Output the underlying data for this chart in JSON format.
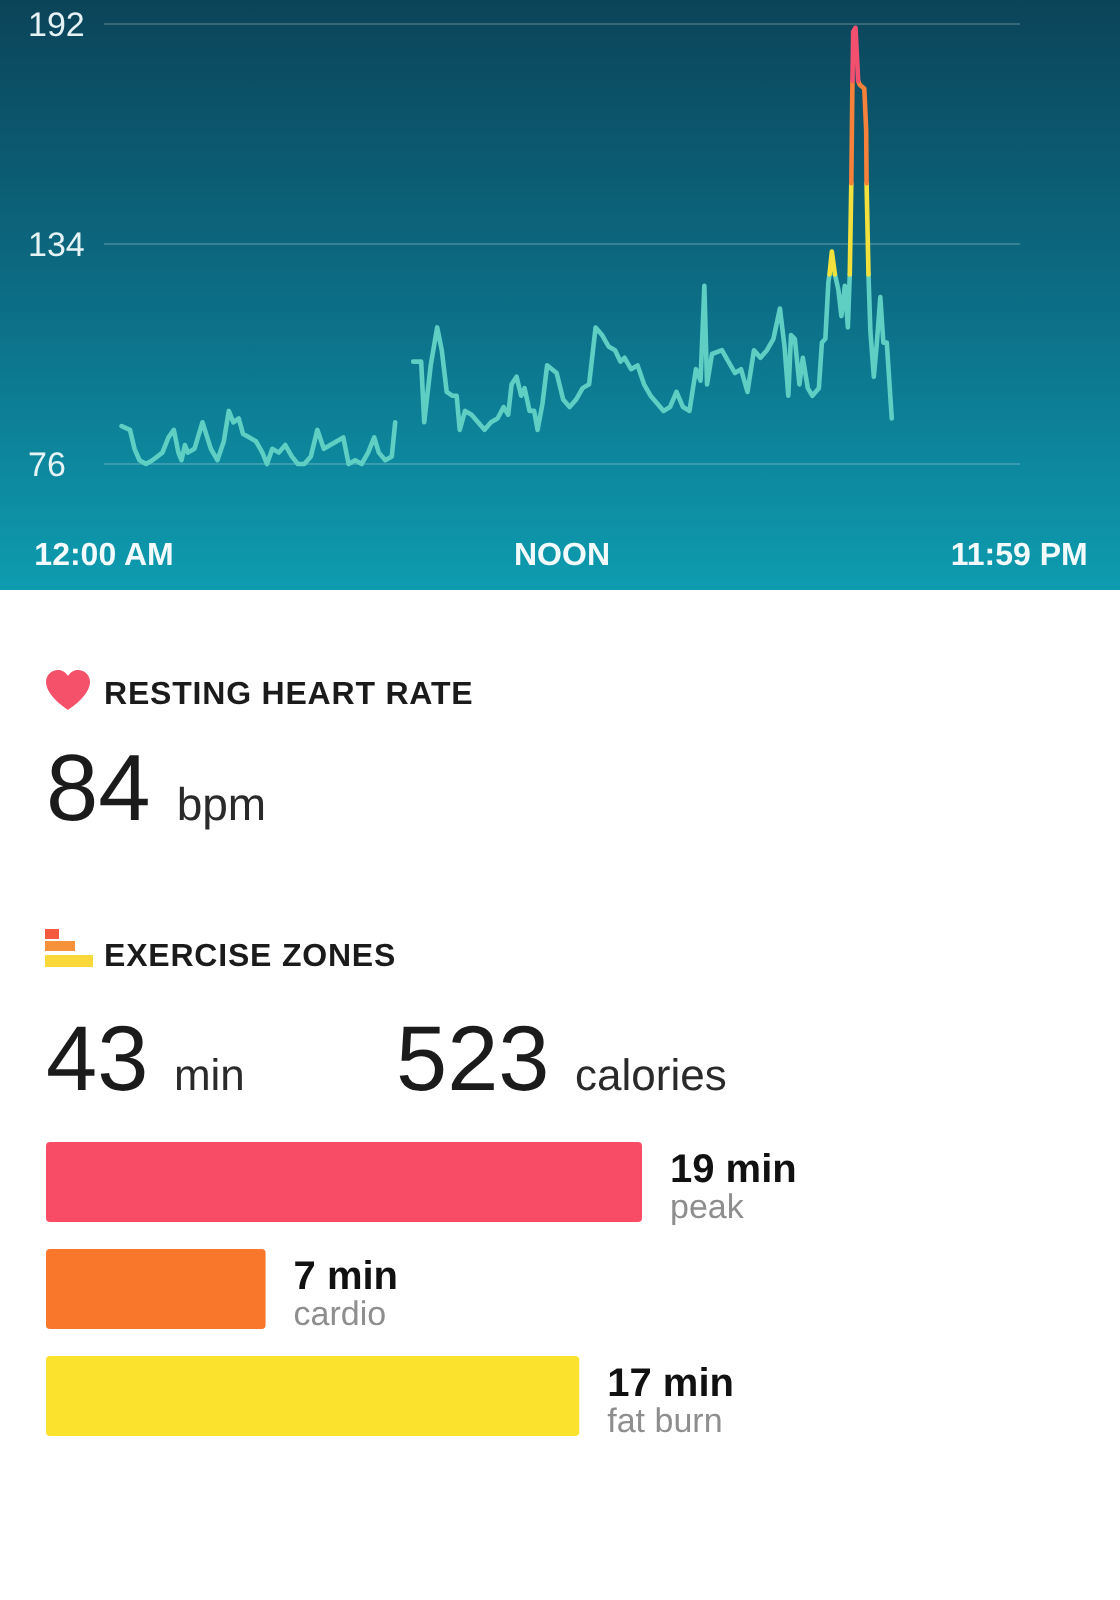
{
  "chart_data": [
    {
      "type": "line",
      "xlim": [
        0,
        24
      ],
      "ylim": [
        76,
        192
      ],
      "xticks": [
        {
          "value": 0,
          "label": "12:00 AM"
        },
        {
          "value": 12,
          "label": "NOON"
        },
        {
          "value": 23.98,
          "label": "11:59 PM"
        }
      ],
      "yticks": [
        76,
        134,
        192
      ],
      "grid": "y",
      "series": [
        {
          "color": "#5fcfc4",
          "x": [
            0.46,
            0.68,
            0.8,
            0.93,
            1.1,
            1.27,
            1.53,
            1.69,
            1.83,
            1.95,
            2.03,
            2.12,
            2.2,
            2.37,
            2.58,
            2.8,
            2.97,
            3.14,
            3.27,
            3.39,
            3.53,
            3.64,
            3.81,
            3.98,
            4.15,
            4.27,
            4.41,
            4.58,
            4.75,
            4.92,
            5.08,
            5.25,
            5.42,
            5.59,
            5.76,
            5.93,
            6.1,
            6.27,
            6.41,
            6.58,
            6.75,
            6.92,
            7.08,
            7.2,
            7.37,
            7.54,
            7.63,
            7.85,
            8.1,
            8.31,
            8.39,
            8.47,
            8.56,
            8.73,
            8.85,
            8.98,
            9.12,
            9.24,
            9.32,
            9.46,
            9.63,
            9.8,
            9.97,
            10.14,
            10.31,
            10.47,
            10.59,
            10.68,
            10.81,
            10.93,
            11.02,
            11.15,
            11.27,
            11.36,
            11.49,
            11.61,
            11.86,
            12.03,
            12.2,
            12.37,
            12.54,
            12.71,
            12.88,
            13.05,
            13.22,
            13.39,
            13.53,
            13.64,
            13.81,
            13.98,
            14.15,
            14.32,
            14.49,
            14.66,
            14.83,
            15.0,
            15.17,
            15.34,
            15.51,
            15.63,
            15.73,
            15.8,
            15.93,
            16.19,
            16.36,
            16.53,
            16.69,
            16.86,
            17.03,
            17.2,
            17.37,
            17.54,
            17.71,
            17.83,
            17.93,
            18.0,
            18.1,
            18.22,
            18.31,
            18.44,
            18.56,
            18.73,
            18.81,
            18.9,
            18.98,
            19.01,
            19.09,
            19.15,
            19.24,
            19.32,
            19.41,
            19.49,
            19.54,
            19.75,
            20.03,
            20.08,
            20.17,
            20.25,
            20.34,
            20.42,
            20.51,
            20.64
          ],
          "values": [
            86,
            85,
            80,
            77,
            76,
            77,
            79,
            83,
            85,
            79,
            77,
            81,
            79,
            80,
            87,
            80,
            77,
            82,
            90,
            87,
            88,
            84,
            83,
            82,
            79,
            76,
            80,
            79,
            81,
            78,
            76,
            76,
            78,
            85,
            80,
            81,
            82,
            83,
            76,
            77,
            76,
            79,
            83,
            79,
            77,
            78,
            87,
            null,
            103,
            103,
            87,
            94,
            102,
            112,
            106,
            95,
            94,
            94,
            85,
            90,
            89,
            87,
            85,
            87,
            88,
            91,
            89,
            97,
            99,
            94,
            96,
            90,
            90,
            85,
            92,
            102,
            100,
            93,
            91,
            93,
            96,
            97,
            112,
            110,
            107,
            106,
            103,
            104,
            101,
            102,
            97,
            94,
            92,
            90,
            91,
            95,
            91,
            90,
            101,
            98,
            123,
            97,
            105,
            106,
            103,
            100,
            101,
            95,
            106,
            104,
            106,
            109,
            117,
            107,
            94,
            110,
            109,
            97,
            104,
            96,
            94,
            96,
            108,
            109,
            124,
            126,
            null,
            126,
            122,
            115,
            123,
            112,
            126,
            null,
            126,
            111,
            99,
            108,
            120,
            108,
            108,
            88
          ]
        },
        {
          "color": "#f2e13c",
          "x": [
            19.01,
            19.07,
            19.15,
            19.3,
            19.54,
            19.58,
            19.75,
            19.98,
            20.03
          ],
          "values": [
            126,
            132,
            126,
            null,
            126,
            150,
            null,
            150,
            126
          ]
        },
        {
          "color": "#f5813a",
          "x": [
            19.58,
            19.61,
            19.7,
            19.76,
            19.8,
            19.92,
            19.97,
            19.98
          ],
          "values": [
            150,
            177,
            null,
            177,
            176,
            175,
            164,
            150
          ]
        },
        {
          "color": "#f2506e",
          "x": [
            19.61,
            19.63,
            19.69,
            19.76
          ],
          "values": [
            177,
            190,
            191,
            177
          ]
        }
      ]
    },
    {
      "type": "other",
      "title": "RESTING HEART RATE",
      "annotations": [
        "84 bpm"
      ]
    },
    {
      "type": "bar",
      "orientation": "horizontal",
      "title": "EXERCISE ZONES",
      "annotations": [
        "43 min",
        "523 calories"
      ],
      "categories": [
        "peak",
        "cardio",
        "fat burn"
      ],
      "values": [
        19,
        7,
        17
      ],
      "colors": [
        "#f84b65",
        "#f8772b",
        "#fbe22c"
      ],
      "value_labels": [
        "19 min",
        "7 min",
        "17 min"
      ]
    }
  ]
}
